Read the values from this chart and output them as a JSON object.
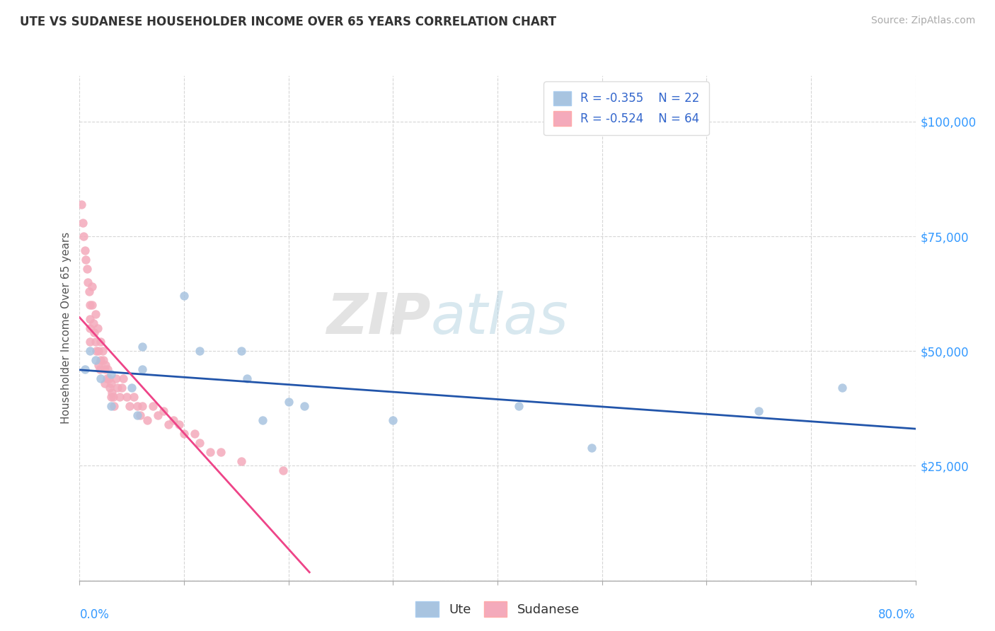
{
  "title": "UTE VS SUDANESE HOUSEHOLDER INCOME OVER 65 YEARS CORRELATION CHART",
  "source": "Source: ZipAtlas.com",
  "ylabel": "Householder Income Over 65 years",
  "legend_r": [
    "R = -0.355",
    "R = -0.524"
  ],
  "legend_n": [
    "N = 22",
    "N = 64"
  ],
  "ute_color": "#A8C4E0",
  "sudanese_color": "#F4AABB",
  "ute_line_color": "#2255AA",
  "sudanese_line_color": "#EE4488",
  "ute_scatter_x": [
    0.005,
    0.01,
    0.015,
    0.02,
    0.03,
    0.03,
    0.05,
    0.055,
    0.06,
    0.06,
    0.1,
    0.115,
    0.155,
    0.16,
    0.175,
    0.2,
    0.215,
    0.3,
    0.42,
    0.49,
    0.65,
    0.73
  ],
  "ute_scatter_y": [
    46000,
    50000,
    48000,
    44000,
    45000,
    38000,
    42000,
    36000,
    51000,
    46000,
    62000,
    50000,
    50000,
    44000,
    35000,
    39000,
    38000,
    35000,
    38000,
    29000,
    37000,
    42000
  ],
  "sudanese_scatter_x": [
    0.002,
    0.003,
    0.004,
    0.005,
    0.006,
    0.007,
    0.008,
    0.009,
    0.01,
    0.01,
    0.01,
    0.01,
    0.012,
    0.012,
    0.013,
    0.014,
    0.015,
    0.015,
    0.016,
    0.017,
    0.018,
    0.018,
    0.019,
    0.02,
    0.02,
    0.022,
    0.023,
    0.024,
    0.024,
    0.025,
    0.026,
    0.027,
    0.028,
    0.029,
    0.03,
    0.03,
    0.031,
    0.032,
    0.033,
    0.035,
    0.036,
    0.038,
    0.04,
    0.042,
    0.045,
    0.048,
    0.052,
    0.055,
    0.058,
    0.06,
    0.065,
    0.07,
    0.075,
    0.08,
    0.085,
    0.09,
    0.095,
    0.1,
    0.11,
    0.115,
    0.125,
    0.135,
    0.155,
    0.195
  ],
  "sudanese_scatter_y": [
    82000,
    78000,
    75000,
    72000,
    70000,
    68000,
    65000,
    63000,
    60000,
    57000,
    55000,
    52000,
    64000,
    60000,
    56000,
    54000,
    58000,
    52000,
    50000,
    55000,
    50000,
    47000,
    46000,
    52000,
    48000,
    50000,
    48000,
    46000,
    43000,
    47000,
    44000,
    46000,
    44000,
    42000,
    43000,
    40000,
    41000,
    40000,
    38000,
    44000,
    42000,
    40000,
    42000,
    44000,
    40000,
    38000,
    40000,
    38000,
    36000,
    38000,
    35000,
    38000,
    36000,
    37000,
    34000,
    35000,
    34000,
    32000,
    32000,
    30000,
    28000,
    28000,
    26000,
    24000
  ],
  "xlim": [
    0.0,
    0.8
  ],
  "ylim": [
    0,
    110000
  ],
  "yticks": [
    0,
    25000,
    50000,
    75000,
    100000
  ],
  "ytick_labels": [
    "",
    "$25,000",
    "$50,000",
    "$75,000",
    "$100,000"
  ],
  "xticks": [
    0.0,
    0.1,
    0.2,
    0.3,
    0.4,
    0.5,
    0.6,
    0.7,
    0.8
  ],
  "figsize": [
    14.06,
    8.92
  ],
  "dpi": 100
}
